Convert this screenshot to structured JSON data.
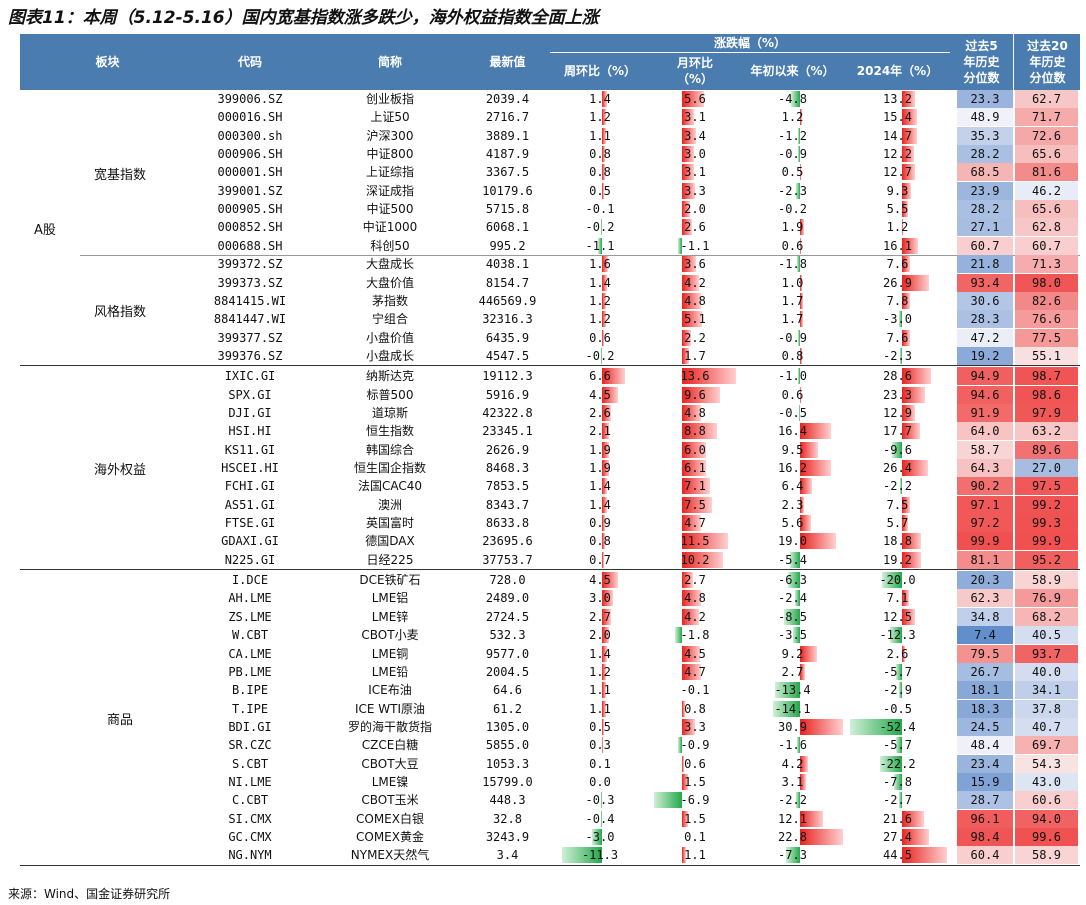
{
  "title": "图表11：本周（5.12-5.16）国内宽基指数涨多跌少，海外权益指数全面上涨",
  "source": "来源：Wind、国金证券研究所",
  "headers": {
    "board": "板块",
    "code": "代码",
    "name": "简称",
    "latest": "最新值",
    "change_group": "涨跌幅（%）",
    "week": "周环比（%）",
    "month": "月环比（%）",
    "ytd": "年初以来（%）",
    "y2024": "2024年（%）",
    "pct5": "过去5年历史分位数",
    "pct20": "过去20年历史分位数"
  },
  "colors": {
    "header": "#4a7cb0",
    "up": "#e8231f",
    "down": "#22a84a"
  },
  "sections": [
    {
      "label": "A股",
      "groups": [
        {
          "label": "宽基指数",
          "rows": [
            [
              "399006.SZ",
              "创业板指",
              "2039.4",
              "1.4",
              "5.6",
              "-4.8",
              "13.2",
              "23.3",
              "62.7"
            ],
            [
              "000016.SH",
              "上证50",
              "2716.7",
              "1.2",
              "3.1",
              "1.2",
              "15.4",
              "48.9",
              "71.7"
            ],
            [
              "000300.sh",
              "沪深300",
              "3889.1",
              "1.1",
              "3.4",
              "-1.2",
              "14.7",
              "35.3",
              "72.6"
            ],
            [
              "000906.SH",
              "中证800",
              "4187.9",
              "0.8",
              "3.0",
              "-0.9",
              "12.2",
              "28.2",
              "65.6"
            ],
            [
              "000001.SH",
              "上证综指",
              "3367.5",
              "0.8",
              "3.1",
              "0.5",
              "12.7",
              "68.5",
              "81.6"
            ],
            [
              "399001.SZ",
              "深证成指",
              "10179.6",
              "0.5",
              "3.3",
              "-2.3",
              "9.3",
              "23.9",
              "46.2"
            ],
            [
              "000905.SH",
              "中证500",
              "5715.8",
              "-0.1",
              "2.0",
              "-0.2",
              "5.5",
              "28.2",
              "65.6"
            ],
            [
              "000852.SH",
              "中证1000",
              "6068.1",
              "-0.2",
              "2.6",
              "1.9",
              "1.2",
              "27.1",
              "62.8"
            ],
            [
              "000688.SH",
              "科创50",
              "995.2",
              "-1.1",
              "-1.1",
              "0.6",
              "16.1",
              "60.7",
              "60.7"
            ]
          ]
        },
        {
          "label": "风格指数",
          "rows": [
            [
              "399372.SZ",
              "大盘成长",
              "4038.1",
              "1.6",
              "3.6",
              "-1.8",
              "7.6",
              "21.8",
              "71.3"
            ],
            [
              "399373.SZ",
              "大盘价值",
              "8154.7",
              "1.4",
              "4.2",
              "1.0",
              "26.9",
              "93.4",
              "98.0"
            ],
            [
              "8841415.WI",
              "茅指数",
              "446569.9",
              "1.2",
              "4.8",
              "1.7",
              "7.8",
              "30.6",
              "82.6"
            ],
            [
              "8841447.WI",
              "宁组合",
              "32316.3",
              "1.2",
              "5.1",
              "1.7",
              "-3.0",
              "28.3",
              "76.6"
            ],
            [
              "399377.SZ",
              "小盘价值",
              "6435.9",
              "0.6",
              "2.2",
              "-0.9",
              "7.6",
              "47.2",
              "77.5"
            ],
            [
              "399376.SZ",
              "小盘成长",
              "4547.5",
              "-0.2",
              "1.7",
              "0.8",
              "-2.3",
              "19.2",
              "55.1"
            ]
          ]
        }
      ]
    },
    {
      "label": "",
      "groups": [
        {
          "label": "海外权益",
          "rows": [
            [
              "IXIC.GI",
              "纳斯达克",
              "19112.3",
              "6.6",
              "13.6",
              "-1.0",
              "28.6",
              "94.9",
              "98.7"
            ],
            [
              "SPX.GI",
              "标普500",
              "5916.9",
              "4.5",
              "9.6",
              "0.6",
              "23.3",
              "94.6",
              "98.6"
            ],
            [
              "DJI.GI",
              "道琼斯",
              "42322.8",
              "2.6",
              "4.8",
              "-0.5",
              "12.9",
              "91.9",
              "97.9"
            ],
            [
              "HSI.HI",
              "恒生指数",
              "23345.1",
              "2.1",
              "8.8",
              "16.4",
              "17.7",
              "64.0",
              "63.2"
            ],
            [
              "KS11.GI",
              "韩国综合",
              "2626.9",
              "1.9",
              "6.0",
              "9.5",
              "-9.6",
              "58.7",
              "89.6"
            ],
            [
              "HSCEI.HI",
              "恒生国企指数",
              "8468.3",
              "1.9",
              "6.1",
              "16.2",
              "26.4",
              "64.3",
              "27.0"
            ],
            [
              "FCHI.GI",
              "法国CAC40",
              "7853.5",
              "1.4",
              "7.1",
              "6.4",
              "-2.2",
              "90.2",
              "97.5"
            ],
            [
              "AS51.GI",
              "澳洲",
              "8343.7",
              "1.4",
              "7.5",
              "2.3",
              "7.5",
              "97.1",
              "99.2"
            ],
            [
              "FTSE.GI",
              "英国富时",
              "8633.8",
              "0.9",
              "4.7",
              "5.6",
              "5.7",
              "97.2",
              "99.3"
            ],
            [
              "GDAXI.GI",
              "德国DAX",
              "23695.6",
              "0.8",
              "11.5",
              "19.0",
              "18.8",
              "99.9",
              "99.9"
            ],
            [
              "N225.GI",
              "日经225",
              "37753.7",
              "0.7",
              "10.2",
              "-5.4",
              "19.2",
              "81.1",
              "95.2"
            ]
          ]
        }
      ]
    },
    {
      "label": "",
      "groups": [
        {
          "label": "商品",
          "rows": [
            [
              "I.DCE",
              "DCE铁矿石",
              "728.0",
              "4.5",
              "2.7",
              "-6.3",
              "-20.0",
              "20.3",
              "58.9"
            ],
            [
              "AH.LME",
              "LME铝",
              "2489.0",
              "3.0",
              "4.8",
              "-2.4",
              "7.1",
              "62.3",
              "76.9"
            ],
            [
              "ZS.LME",
              "LME锌",
              "2724.5",
              "2.7",
              "4.2",
              "-8.5",
              "12.5",
              "34.8",
              "68.2"
            ],
            [
              "W.CBT",
              "CBOT小麦",
              "532.3",
              "2.0",
              "-1.8",
              "-3.5",
              "-12.3",
              "7.4",
              "40.5"
            ],
            [
              "CA.LME",
              "LME铜",
              "9577.0",
              "1.4",
              "4.5",
              "9.2",
              "2.6",
              "79.5",
              "93.7"
            ],
            [
              "PB.LME",
              "LME铅",
              "2004.5",
              "1.2",
              "4.7",
              "2.7",
              "-5.7",
              "26.7",
              "40.0"
            ],
            [
              "B.IPE",
              "ICE布油",
              "64.6",
              "1.1",
              "-0.1",
              "-13.4",
              "-2.9",
              "18.1",
              "34.1"
            ],
            [
              "T.IPE",
              "ICE WTI原油",
              "61.2",
              "1.1",
              "0.8",
              "-14.1",
              "-0.5",
              "18.3",
              "37.8"
            ],
            [
              "BDI.GI",
              "罗的海干散货指",
              "1305.0",
              "0.5",
              "3.3",
              "30.9",
              "-52.4",
              "24.5",
              "40.7"
            ],
            [
              "SR.CZC",
              "CZCE白糖",
              "5855.0",
              "0.3",
              "-0.9",
              "-1.6",
              "-5.7",
              "48.4",
              "69.7"
            ],
            [
              "S.CBT",
              "CBOT大豆",
              "1053.3",
              "0.1",
              "0.6",
              "4.2",
              "-22.2",
              "23.4",
              "54.3"
            ],
            [
              "NI.LME",
              "LME镍",
              "15799.0",
              "0.0",
              "1.5",
              "3.1",
              "-7.8",
              "15.9",
              "43.0"
            ],
            [
              "C.CBT",
              "CBOT玉米",
              "448.3",
              "-0.3",
              "-6.9",
              "-2.2",
              "-2.7",
              "28.7",
              "60.6"
            ],
            [
              "SI.CMX",
              "COMEX白银",
              "32.8",
              "-0.4",
              "1.5",
              "12.1",
              "21.6",
              "96.1",
              "94.0"
            ],
            [
              "GC.CMX",
              "COMEX黄金",
              "3243.9",
              "-3.0",
              "0.1",
              "22.8",
              "27.4",
              "98.4",
              "99.6"
            ],
            [
              "NG.NYM",
              "NYMEX天然气",
              "3.4",
              "-11.3",
              "1.1",
              "-7.3",
              "44.5",
              "60.4",
              "58.9"
            ]
          ]
        }
      ]
    }
  ]
}
